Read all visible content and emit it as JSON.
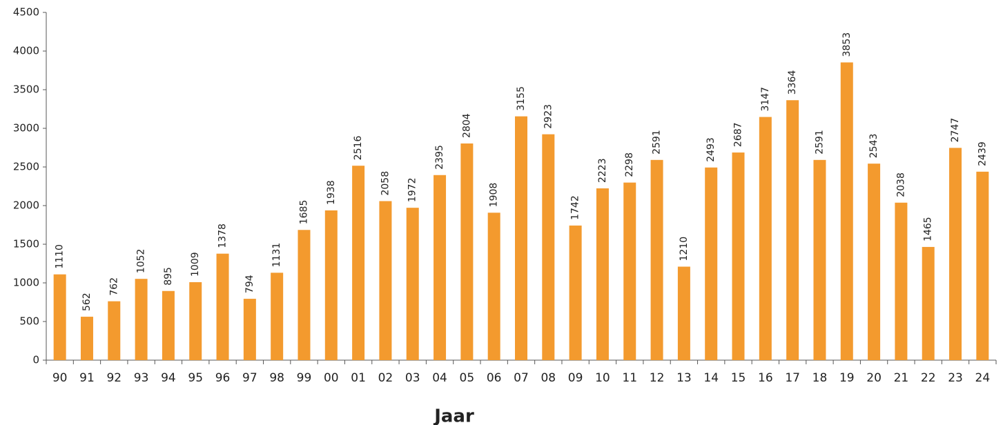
{
  "chart_data": {
    "type": "bar",
    "x_label": "Jaar",
    "categories": [
      "90",
      "91",
      "92",
      "93",
      "94",
      "95",
      "96",
      "97",
      "98",
      "99",
      "00",
      "01",
      "02",
      "03",
      "04",
      "05",
      "06",
      "07",
      "08",
      "09",
      "10",
      "11",
      "12",
      "13",
      "14",
      "15",
      "16",
      "17",
      "18",
      "19",
      "20",
      "21",
      "22",
      "23",
      "24"
    ],
    "values": [
      1110,
      562,
      762,
      1052,
      895,
      1009,
      1378,
      794,
      1131,
      1685,
      1938,
      2516,
      2058,
      1972,
      2395,
      2804,
      1908,
      3155,
      2923,
      1742,
      2223,
      2298,
      2591,
      1210,
      2493,
      2687,
      3147,
      3364,
      2591,
      3853,
      2543,
      2038,
      1465,
      2747,
      2439
    ],
    "color": "#f39a2e",
    "ylim": [
      0,
      4500
    ],
    "yticks": [
      0,
      500,
      1000,
      1500,
      2000,
      2500,
      3000,
      3500,
      4000,
      4500
    ],
    "grid": false
  }
}
